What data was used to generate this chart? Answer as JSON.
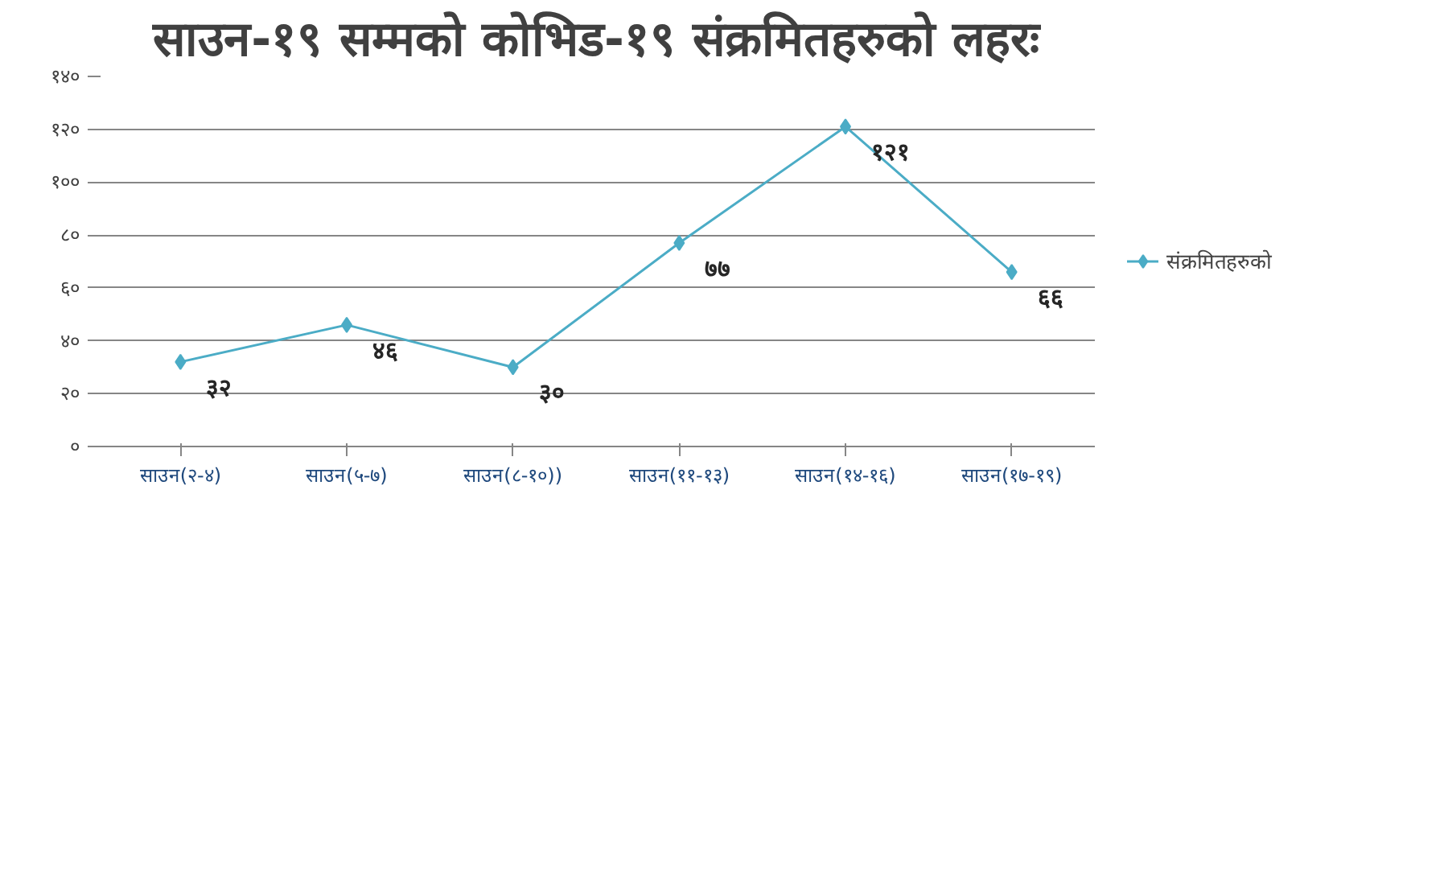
{
  "chart_data": {
    "type": "line",
    "title": "साउन-१९ सम्मको कोभिड-१९ संक्रमितहरुको लहरः",
    "categories": [
      "साउन(२-४)",
      "साउन(५-७)",
      "साउन(८-१०))",
      "साउन(११-१३)",
      "साउन(१४-१६)",
      "साउन(१७-१९)"
    ],
    "series": [
      {
        "name": "संक्रमितहरुको",
        "color": "#4bacc6",
        "values": [
          32,
          46,
          30,
          77,
          121,
          66
        ],
        "value_labels": [
          "३२",
          "४६",
          "३०",
          "७७",
          "१२१",
          "६६"
        ]
      }
    ],
    "ylim": [
      0,
      140
    ],
    "yticks": [
      {
        "value": 0,
        "label": "०"
      },
      {
        "value": 20,
        "label": "२०"
      },
      {
        "value": 40,
        "label": "४०"
      },
      {
        "value": 60,
        "label": "६०"
      },
      {
        "value": 80,
        "label": "८०"
      },
      {
        "value": 100,
        "label": "१००"
      },
      {
        "value": 120,
        "label": "१२०"
      },
      {
        "value": 140,
        "label": "१४०"
      }
    ],
    "grid": "y",
    "legend": "right",
    "marker": "diamond",
    "line_style": "solid"
  }
}
